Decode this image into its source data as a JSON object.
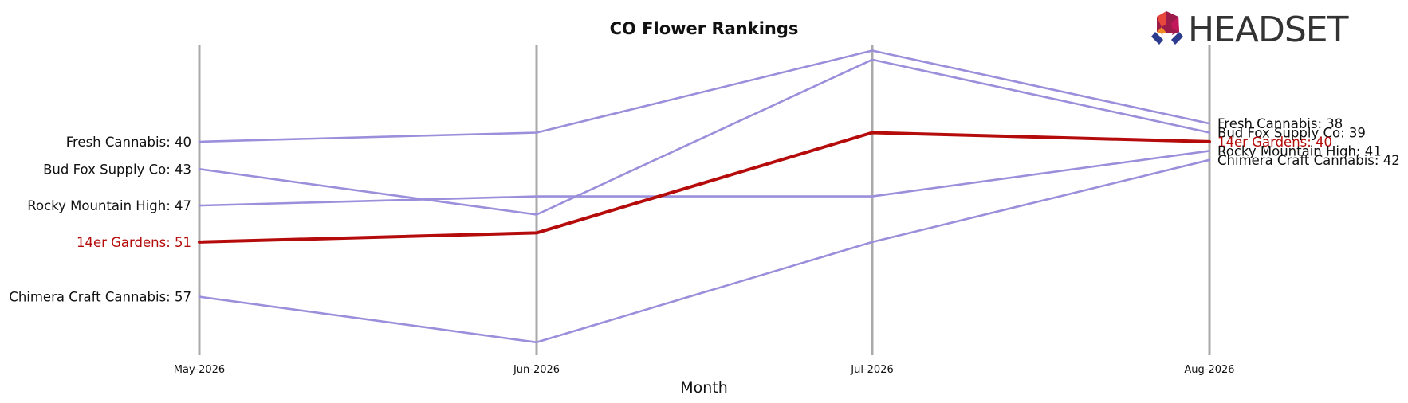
{
  "chart_data": {
    "type": "line",
    "title": "CO Flower Rankings",
    "xlabel": "Month",
    "ylabel": "",
    "categories": [
      "May-2026",
      "Jun-2026",
      "Jul-2026",
      "Aug-2026"
    ],
    "y_inverted": true,
    "ylim": [
      64,
      29
    ],
    "grid": "vertical lines at each month",
    "highlight_series": "14er Gardens",
    "series": [
      {
        "name": "Fresh Cannabis",
        "values": [
          40,
          39,
          30,
          38
        ],
        "color": "#9a8fdb"
      },
      {
        "name": "Bud Fox Supply Co",
        "values": [
          43,
          48,
          31,
          39
        ],
        "color": "#9a8fdb"
      },
      {
        "name": "Rocky Mountain High",
        "values": [
          47,
          46,
          46,
          41
        ],
        "color": "#9a8fdb"
      },
      {
        "name": "14er Gardens",
        "values": [
          51,
          50,
          39,
          40
        ],
        "color": "#b50b0b"
      },
      {
        "name": "Chimera Craft Cannabis",
        "values": [
          57,
          62,
          51,
          42
        ],
        "color": "#9a8fdb"
      }
    ],
    "left_labels": [
      "Fresh Cannabis: 40",
      "Bud Fox Supply Co: 43",
      "Rocky Mountain High: 47",
      "14er Gardens: 51",
      "Chimera Craft Cannabis: 57"
    ],
    "right_labels": [
      "Fresh Cannabis: 38",
      "Bud Fox Supply Co: 39",
      "14er Gardens: 40",
      "Rocky Mountain High: 41",
      "Chimera Craft Cannabis: 42"
    ]
  },
  "logo": {
    "text": "HEADSET"
  },
  "colors": {
    "highlight": "#b50b0b",
    "series": "#9a8fdb",
    "vline": "#aaaaaa",
    "label": "#111111"
  }
}
